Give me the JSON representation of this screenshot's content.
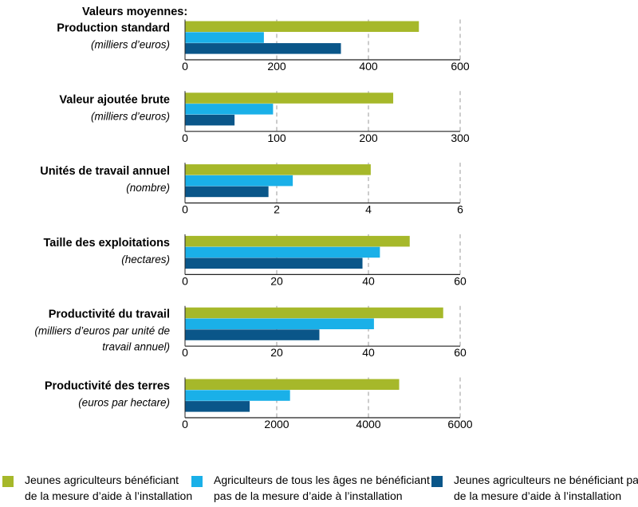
{
  "chart_data": {
    "type": "bar",
    "orientation": "horizontal",
    "title": "Valeurs moyennes:",
    "series": [
      {
        "name": "Jeunes agriculteurs bénéficiant de la mesure d'aide à l'installation",
        "color": "#a6b82a"
      },
      {
        "name": "Agriculteurs de tous les âges ne bénéficiant pas de la mesure d'aide à l'installation",
        "color": "#1ab0e8"
      },
      {
        "name": "Jeunes agriculteurs ne bénéficiant pas de la mesure d'aide à l'installation",
        "color": "#0a5689"
      }
    ],
    "legend_labels": [
      [
        "Jeunes agriculteurs bénéficiant",
        "de la mesure d’aide à l’installation"
      ],
      [
        "Agriculteurs de tous les âges ne bénéficiant",
        "pas de la mesure d’aide à l’installation"
      ],
      [
        "Jeunes agriculteurs ne bénéficiant pas",
        "de la mesure d’aide à l’installation"
      ]
    ],
    "legend_position": "bottom",
    "grid": "dashed vertical",
    "panels": [
      {
        "label": "Production standard",
        "sublabel": [
          "(milliers d’euros)"
        ],
        "xlim": [
          0,
          600
        ],
        "ticks": [
          0,
          200,
          400,
          600
        ],
        "values": [
          510,
          172,
          340
        ]
      },
      {
        "label": "Valeur ajoutée brute",
        "sublabel": [
          "(milliers d’euros)"
        ],
        "xlim": [
          0,
          300
        ],
        "ticks": [
          0,
          100,
          200,
          300
        ],
        "values": [
          227,
          96,
          54
        ]
      },
      {
        "label": "Unités de travail annuel",
        "sublabel": [
          "(nombre)"
        ],
        "xlim": [
          0,
          6
        ],
        "ticks": [
          0,
          2,
          4,
          6
        ],
        "values": [
          4.05,
          2.35,
          1.82
        ]
      },
      {
        "label": "Taille des exploitations",
        "sublabel": [
          "(hectares)"
        ],
        "xlim": [
          0,
          60
        ],
        "ticks": [
          0,
          20,
          40,
          60
        ],
        "values": [
          49,
          42.5,
          38.7
        ]
      },
      {
        "label": "Productivité du travail",
        "sublabel": [
          "(milliers d’euros par  unité de",
          "travail annuel)"
        ],
        "xlim": [
          0,
          60
        ],
        "ticks": [
          0,
          20,
          40,
          60
        ],
        "values": [
          56.3,
          41.2,
          29.3
        ]
      },
      {
        "label": "Productivité des terres",
        "sublabel": [
          "(euros par hectare)"
        ],
        "xlim": [
          0,
          6000
        ],
        "ticks": [
          0,
          2000,
          4000,
          6000
        ],
        "values": [
          4670,
          2290,
          1410
        ]
      }
    ]
  }
}
